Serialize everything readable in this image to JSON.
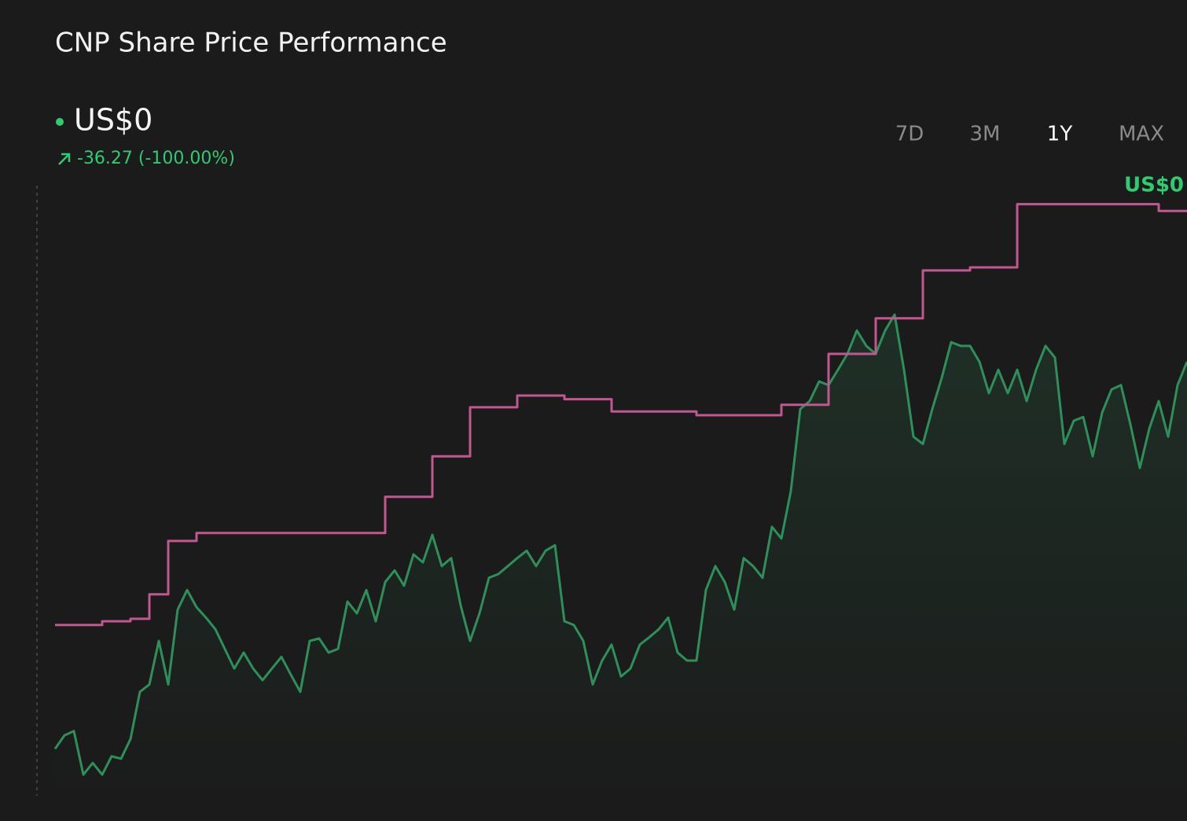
{
  "chart_data": {
    "type": "line",
    "title": "CNP Share Price Performance",
    "price": "US$0",
    "change": "-36.27 (-100.00%)",
    "end_label": "US$0",
    "ranges": [
      "7D",
      "3M",
      "1Y",
      "MAX"
    ],
    "active_range": "1Y",
    "ylim": [
      0,
      100
    ],
    "series": [
      {
        "color": "#2f8f5b",
        "values": [
          7.4,
          9.6,
          10.3,
          3.2,
          5.1,
          3.2,
          6.2,
          5.8,
          9.0,
          16.7,
          17.9,
          25.0,
          17.9,
          30.1,
          33.3,
          30.5,
          28.8,
          26.9,
          23.7,
          20.5,
          23.1,
          20.5,
          18.6,
          20.5,
          22.4,
          19.5,
          16.7,
          25.0,
          25.4,
          23.1,
          23.7,
          31.4,
          29.5,
          33.3,
          28.2,
          34.6,
          36.5,
          34.0,
          39.1,
          37.8,
          42.3,
          37.2,
          38.5,
          30.8,
          25.0,
          29.5,
          35.3,
          35.9,
          37.2,
          38.5,
          39.7,
          37.2,
          39.7,
          40.6,
          28.2,
          27.6,
          25.0,
          17.9,
          21.8,
          24.4,
          19.2,
          20.5,
          24.4,
          25.6,
          26.9,
          28.8,
          23.1,
          21.8,
          21.8,
          33.3,
          37.2,
          34.6,
          30.1,
          38.5,
          37.2,
          35.3,
          43.6,
          41.7,
          49.4,
          62.8,
          64.1,
          67.3,
          66.7,
          69.2,
          71.8,
          75.6,
          73.1,
          71.8,
          75.6,
          78.2,
          69.2,
          58.3,
          57.1,
          62.8,
          67.9,
          73.7,
          73.1,
          73.1,
          70.5,
          65.4,
          69.2,
          65.4,
          69.2,
          64.1,
          69.2,
          73.1,
          71.2,
          57.1,
          60.9,
          61.5,
          55.1,
          62.2,
          66.0,
          66.7,
          60.3,
          53.2,
          59.6,
          64.1,
          58.3,
          66.7,
          70.5
        ]
      },
      {
        "color": "#c2578f",
        "step": true,
        "values": [
          27.6,
          27.6,
          27.6,
          27.6,
          27.6,
          28.2,
          28.2,
          28.2,
          28.6,
          28.6,
          32.6,
          32.6,
          41.3,
          41.3,
          41.3,
          42.6,
          42.6,
          42.6,
          42.6,
          42.6,
          42.6,
          42.6,
          42.6,
          42.6,
          42.6,
          42.6,
          42.6,
          42.6,
          42.6,
          42.6,
          42.6,
          42.6,
          42.6,
          42.6,
          42.6,
          48.5,
          48.5,
          48.5,
          48.5,
          48.5,
          55.1,
          55.1,
          55.1,
          55.1,
          63.1,
          63.1,
          63.1,
          63.1,
          63.1,
          65.0,
          65.0,
          65.0,
          65.0,
          65.0,
          64.4,
          64.4,
          64.4,
          64.4,
          64.4,
          62.4,
          62.4,
          62.4,
          62.4,
          62.4,
          62.4,
          62.4,
          62.4,
          62.4,
          61.8,
          61.8,
          61.8,
          61.8,
          61.8,
          61.8,
          61.8,
          61.8,
          61.8,
          63.5,
          63.5,
          63.5,
          63.5,
          63.5,
          71.8,
          71.8,
          71.8,
          71.8,
          71.8,
          77.6,
          77.6,
          77.6,
          77.6,
          77.6,
          85.4,
          85.4,
          85.4,
          85.4,
          85.4,
          85.9,
          85.9,
          85.9,
          85.9,
          85.9,
          96.2,
          96.2,
          96.2,
          96.2,
          96.2,
          96.2,
          96.2,
          96.2,
          96.2,
          96.2,
          96.2,
          96.2,
          96.2,
          96.2,
          96.2,
          95.1,
          95.1,
          95.1,
          95.1
        ]
      }
    ]
  }
}
